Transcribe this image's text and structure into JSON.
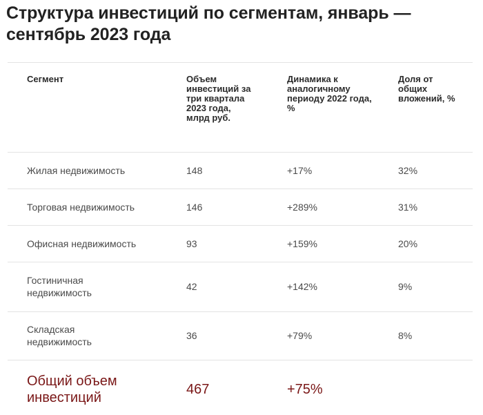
{
  "title": "Структура инвестиций по сегментам, январь — сентябрь 2023 года",
  "table": {
    "headers": [
      "Сегмент",
      "Объем инвестиций за три квартала 2023 года, млрд руб.",
      "Динамика к аналогичному периоду 2022 года, %",
      "Доля от общих вложений, %"
    ],
    "rows": [
      {
        "segment": "Жилая недвижимость",
        "volume": "148",
        "dynamics": "+17%",
        "share": "32%"
      },
      {
        "segment": "Торговая недвижимость",
        "volume": "146",
        "dynamics": "+289%",
        "share": "31%"
      },
      {
        "segment": "Офисная недвижимость",
        "volume": "93",
        "dynamics": "+159%",
        "share": "20%"
      },
      {
        "segment": "Гостиничная недвижимость",
        "volume": "42",
        "dynamics": "+142%",
        "share": "9%"
      },
      {
        "segment": "Складская недвижимость",
        "volume": "36",
        "dynamics": "+79%",
        "share": "8%"
      }
    ],
    "total": {
      "label": "Общий объем инвестиций",
      "volume": "467",
      "dynamics": "+75%"
    }
  },
  "colors": {
    "title": "#222222",
    "text": "#4a4a4a",
    "accent": "#7a1717",
    "divider": "#e3e3e3"
  }
}
